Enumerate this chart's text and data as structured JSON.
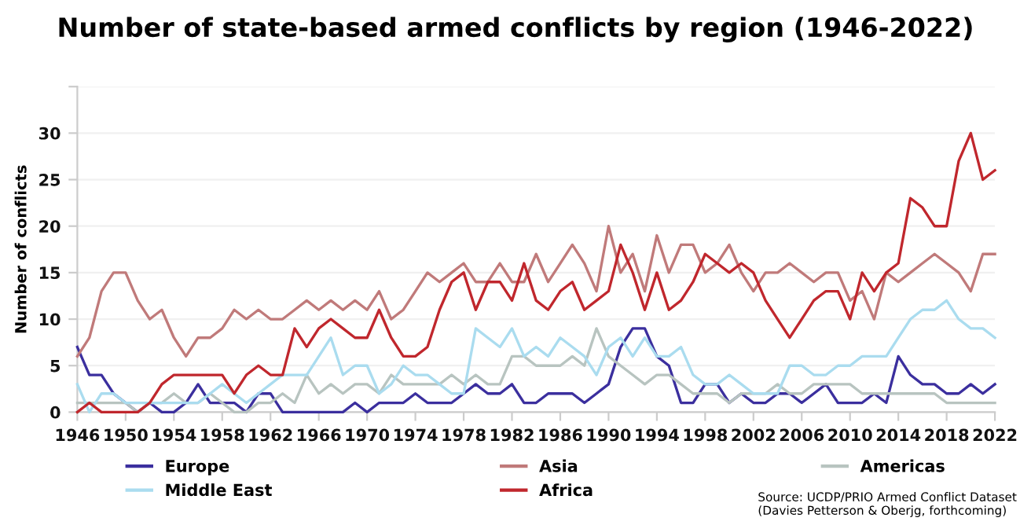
{
  "chart_data": {
    "type": "line",
    "title": "Number of state-based armed conflicts by region (1946-2022)",
    "ylabel": "Number of conflicts",
    "x": [
      1946,
      1947,
      1948,
      1949,
      1950,
      1951,
      1952,
      1953,
      1954,
      1955,
      1956,
      1957,
      1958,
      1959,
      1960,
      1961,
      1962,
      1963,
      1964,
      1965,
      1966,
      1967,
      1968,
      1969,
      1970,
      1971,
      1972,
      1973,
      1974,
      1975,
      1976,
      1977,
      1978,
      1979,
      1980,
      1981,
      1982,
      1983,
      1984,
      1985,
      1986,
      1987,
      1988,
      1989,
      1990,
      1991,
      1992,
      1993,
      1994,
      1995,
      1996,
      1997,
      1998,
      1999,
      2000,
      2001,
      2002,
      2003,
      2004,
      2005,
      2006,
      2007,
      2008,
      2009,
      2010,
      2011,
      2012,
      2013,
      2014,
      2015,
      2016,
      2017,
      2018,
      2019,
      2020,
      2021,
      2022
    ],
    "series": [
      {
        "name": "Europe",
        "color": "#3b2f9e",
        "values": [
          7,
          4,
          4,
          2,
          1,
          0,
          1,
          0,
          0,
          1,
          3,
          1,
          1,
          1,
          0,
          2,
          2,
          0,
          0,
          0,
          0,
          0,
          0,
          1,
          0,
          1,
          1,
          1,
          2,
          1,
          1,
          1,
          2,
          3,
          2,
          2,
          3,
          1,
          1,
          2,
          2,
          2,
          1,
          2,
          3,
          7,
          9,
          9,
          6,
          5,
          1,
          1,
          3,
          3,
          1,
          2,
          1,
          1,
          2,
          2,
          1,
          2,
          3,
          1,
          1,
          1,
          2,
          1,
          6,
          4,
          3,
          3,
          2,
          2,
          3,
          2,
          3
        ]
      },
      {
        "name": "Asia",
        "color": "#c07a7a",
        "values": [
          6,
          8,
          13,
          15,
          15,
          12,
          10,
          11,
          8,
          6,
          8,
          8,
          9,
          11,
          10,
          11,
          10,
          10,
          11,
          12,
          11,
          12,
          11,
          12,
          11,
          13,
          10,
          11,
          13,
          15,
          14,
          15,
          16,
          14,
          14,
          16,
          14,
          14,
          17,
          14,
          16,
          18,
          16,
          13,
          20,
          15,
          17,
          13,
          19,
          15,
          18,
          18,
          15,
          16,
          18,
          15,
          13,
          15,
          15,
          16,
          15,
          14,
          15,
          15,
          12,
          13,
          10,
          15,
          14,
          15,
          16,
          17,
          16,
          15,
          13,
          17,
          17
        ]
      },
      {
        "name": "Americas",
        "color": "#b8c4c0",
        "values": [
          1,
          1,
          1,
          1,
          1,
          0,
          1,
          1,
          2,
          1,
          1,
          2,
          1,
          0,
          0,
          1,
          1,
          2,
          1,
          4,
          2,
          3,
          2,
          3,
          3,
          2,
          4,
          3,
          3,
          3,
          3,
          4,
          3,
          4,
          3,
          3,
          6,
          6,
          5,
          5,
          5,
          6,
          5,
          9,
          6,
          5,
          4,
          3,
          4,
          4,
          3,
          2,
          2,
          2,
          1,
          2,
          2,
          2,
          3,
          2,
          2,
          3,
          3,
          3,
          3,
          2,
          2,
          2,
          2,
          2,
          2,
          2,
          1,
          1,
          1,
          1,
          1
        ]
      },
      {
        "name": "Middle East",
        "color": "#aadcef",
        "values": [
          3,
          0,
          2,
          2,
          1,
          1,
          1,
          1,
          1,
          1,
          1,
          2,
          3,
          2,
          1,
          2,
          3,
          4,
          4,
          4,
          6,
          8,
          4,
          5,
          5,
          2,
          3,
          5,
          4,
          4,
          3,
          2,
          2,
          9,
          8,
          7,
          9,
          6,
          7,
          6,
          8,
          7,
          6,
          4,
          7,
          8,
          6,
          8,
          6,
          6,
          7,
          4,
          3,
          3,
          4,
          3,
          2,
          2,
          2,
          5,
          5,
          4,
          4,
          5,
          5,
          6,
          6,
          6,
          8,
          10,
          11,
          11,
          12,
          10,
          9,
          9,
          8
        ]
      },
      {
        "name": "Africa",
        "color": "#c0272d",
        "values": [
          0,
          1,
          0,
          0,
          0,
          0,
          1,
          3,
          4,
          4,
          4,
          4,
          4,
          2,
          4,
          5,
          4,
          4,
          9,
          7,
          9,
          10,
          9,
          8,
          8,
          11,
          8,
          6,
          6,
          7,
          11,
          14,
          15,
          11,
          14,
          14,
          12,
          16,
          12,
          11,
          13,
          14,
          11,
          12,
          13,
          18,
          15,
          11,
          15,
          11,
          12,
          14,
          17,
          16,
          15,
          16,
          15,
          12,
          10,
          8,
          10,
          12,
          13,
          13,
          10,
          15,
          13,
          15,
          16,
          23,
          22,
          20,
          20,
          27,
          30,
          25,
          26
        ]
      }
    ],
    "xlim": [
      1946,
      2022
    ],
    "xticks": [
      1946,
      1950,
      1954,
      1958,
      1962,
      1966,
      1970,
      1974,
      1978,
      1982,
      1986,
      1990,
      1994,
      1998,
      2002,
      2006,
      2010,
      2014,
      2018,
      2022
    ],
    "ylim": [
      0,
      35
    ],
    "yticks": [
      0,
      5,
      10,
      15,
      20,
      25,
      30,
      {
        "value": 35,
        "label": null
      }
    ],
    "grid": "y",
    "legend": "bottom",
    "marker": "none",
    "line_style": "solid",
    "annotations": [
      "Source: UCDP/PRIO Armed Conflict Dataset\n(Davies Petterson & Oberjg, forthcoming)"
    ]
  }
}
